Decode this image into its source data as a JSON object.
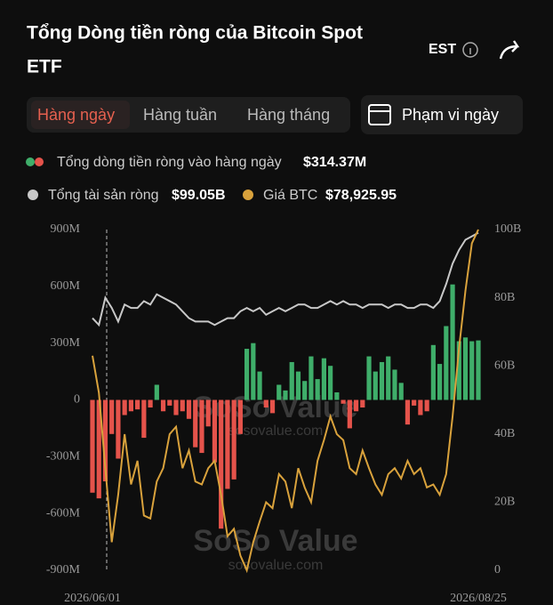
{
  "header": {
    "title_line1": "Tổng Dòng tiền ròng của Bitcoin Spot",
    "title_line2": "ETF",
    "timezone": "EST"
  },
  "tabs": [
    "Hàng ngày",
    "Hàng tuần",
    "Hàng tháng"
  ],
  "range_button": "Phạm vi ngày",
  "watermark": {
    "brand": "SoSo Value",
    "site": "sosovalue.com"
  },
  "chart_data": {
    "type": "bar",
    "categories": [
      "2026/06/01",
      null,
      null,
      null,
      null,
      null,
      null,
      null,
      null,
      null,
      null,
      null,
      null,
      null,
      null,
      null,
      null,
      null,
      null,
      null,
      null,
      null,
      null,
      null,
      null,
      null,
      null,
      null,
      null,
      null,
      null,
      null,
      null,
      null,
      null,
      null,
      null,
      null,
      null,
      null,
      null,
      null,
      null,
      null,
      null,
      null,
      null,
      null,
      null,
      null,
      null,
      null,
      null,
      null,
      null,
      null,
      null,
      null,
      null,
      null,
      "2026/08/25"
    ],
    "series": [
      {
        "name": "Tổng dòng tiền ròng vào hàng ngày",
        "latest": "$314.37M",
        "colors": [
          "#3fae6a",
          "#e5534b"
        ],
        "values": [
          -490,
          -520,
          -430,
          -180,
          -310,
          -80,
          -60,
          -50,
          -200,
          -40,
          80,
          -60,
          -30,
          -80,
          -60,
          -100,
          -250,
          -280,
          -140,
          -330,
          -680,
          -470,
          -420,
          -180,
          270,
          300,
          150,
          -40,
          -70,
          80,
          50,
          200,
          150,
          100,
          230,
          110,
          220,
          180,
          40,
          -20,
          -150,
          -60,
          -40,
          230,
          150,
          200,
          230,
          160,
          90,
          -130,
          -30,
          -80,
          -60,
          290,
          190,
          390,
          610,
          310,
          330,
          310,
          314.37
        ]
      },
      {
        "name": "Tổng tài sản ròng",
        "latest": "$99.05B",
        "color": "#c8c8c8",
        "axis": "y2",
        "values": [
          74,
          72,
          80,
          77,
          73,
          78,
          77,
          77,
          79,
          78,
          81,
          80,
          79,
          78,
          76,
          74,
          73,
          73,
          73,
          72,
          73,
          74,
          74,
          76,
          77,
          76,
          77,
          75,
          76,
          77,
          76,
          77,
          78,
          78,
          77,
          77,
          78,
          79,
          78,
          79,
          78,
          78,
          77,
          78,
          78,
          78,
          77,
          78,
          78,
          77,
          77,
          78,
          78,
          77,
          79,
          84,
          90,
          94,
          97,
          98,
          99.05
        ]
      },
      {
        "name": "Giá BTC",
        "latest": "$78,925.95",
        "color": "#d9a23c",
        "values": [
          70400,
          67900,
          62800,
          57800,
          61000,
          65100,
          61700,
          63300,
          59600,
          59400,
          61900,
          62800,
          65100,
          65600,
          62800,
          64000,
          61900,
          61700,
          62800,
          63300,
          61000,
          58200,
          58700,
          56900,
          55900,
          57800,
          59200,
          60500,
          60100,
          62400,
          61900,
          60100,
          62800,
          61500,
          60500,
          63300,
          64700,
          66300,
          65100,
          64700,
          62800,
          62400,
          64000,
          62800,
          61700,
          61000,
          62400,
          62800,
          62100,
          63300,
          62400,
          62800,
          61500,
          61700,
          61000,
          62400,
          66300,
          70900,
          74800,
          78000,
          78925.95
        ]
      }
    ],
    "ylim": [
      -900,
      900
    ],
    "yticks": [
      {
        "value": 900,
        "label": "900M"
      },
      {
        "value": 600,
        "label": "600M"
      },
      {
        "value": 300,
        "label": "300M"
      },
      0,
      {
        "value": -300,
        "label": "-300M"
      },
      {
        "value": -600,
        "label": "-600M"
      },
      {
        "value": -900,
        "label": "-900M"
      }
    ],
    "y2lim": [
      0,
      100
    ],
    "y2ticks": [
      {
        "value": 100,
        "label": "100B"
      },
      {
        "value": 80,
        "label": "80B"
      },
      {
        "value": 60,
        "label": "60B"
      },
      {
        "value": 40,
        "label": "40B"
      },
      {
        "value": 20,
        "label": "20B"
      },
      0
    ]
  }
}
